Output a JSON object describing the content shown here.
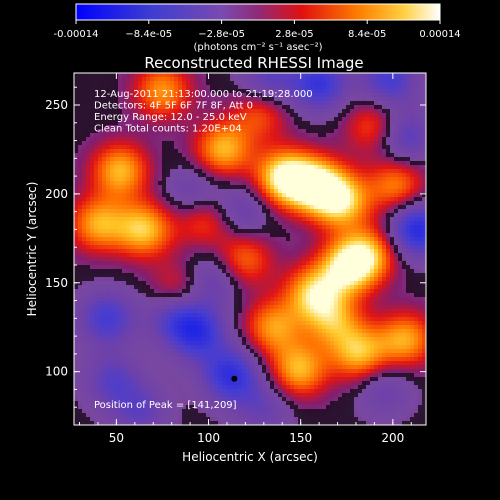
{
  "chart_data": {
    "type": "heatmap",
    "title": "Reconstructed RHESSI Image",
    "xlabel": "Heliocentric X (arcsec)",
    "ylabel": "Heliocentric Y (arcsec)",
    "xlim": [
      27,
      218
    ],
    "ylim": [
      70,
      268
    ],
    "x_ticks": [
      "50",
      "100",
      "150",
      "200"
    ],
    "y_ticks": [
      "100",
      "150",
      "200",
      "250"
    ],
    "colorbar": {
      "tick_labels": [
        "-0.00014",
        "−8.4e-05",
        "−2.8e-05",
        "2.8e-05",
        "8.4e-05",
        "0.00014"
      ],
      "unit_label": "(photons cm⁻² s⁻¹ asec⁻²)",
      "range": [
        -0.00014,
        0.00014
      ]
    },
    "annotations": [
      "12-Aug-2011 21:13:00.000 to 21:19:28.000",
      "Detectors: 4F 5F 6F 7F 8F, Att 0",
      "Energy Range: 12.0 - 25.0 keV",
      "Clean     Total counts: 1.20E+04"
    ],
    "peak_label": "Position of Peak = [141,209]",
    "peak_position": [
      141,
      209
    ],
    "blobs": [
      {
        "x": 141,
        "y": 209,
        "v": 1.0
      },
      {
        "x": 158,
        "y": 205,
        "v": 0.95
      },
      {
        "x": 172,
        "y": 196,
        "v": 0.85
      },
      {
        "x": 52,
        "y": 213,
        "v": 0.75
      },
      {
        "x": 65,
        "y": 180,
        "v": 0.8
      },
      {
        "x": 40,
        "y": 183,
        "v": 0.7
      },
      {
        "x": 108,
        "y": 225,
        "v": 0.75
      },
      {
        "x": 188,
        "y": 167,
        "v": 0.6
      },
      {
        "x": 176,
        "y": 159,
        "v": 0.95
      },
      {
        "x": 157,
        "y": 144,
        "v": 0.8
      },
      {
        "x": 149,
        "y": 101,
        "v": 0.75
      },
      {
        "x": 135,
        "y": 125,
        "v": 0.65
      },
      {
        "x": 182,
        "y": 110,
        "v": 0.75
      },
      {
        "x": 168,
        "y": 128,
        "v": 0.6
      },
      {
        "x": 207,
        "y": 118,
        "v": 0.7
      },
      {
        "x": 202,
        "y": 205,
        "v": 0.6
      },
      {
        "x": 75,
        "y": 258,
        "v": 0.65
      },
      {
        "x": 128,
        "y": 246,
        "v": 0.5
      },
      {
        "x": 119,
        "y": 163,
        "v": 0.55
      },
      {
        "x": 98,
        "y": 186,
        "v": 0.5
      },
      {
        "x": 84,
        "y": 146,
        "v": 0.45
      },
      {
        "x": 190,
        "y": 238,
        "v": 0.5
      },
      {
        "x": 112,
        "y": 98,
        "v": -0.75
      },
      {
        "x": 94,
        "y": 122,
        "v": -0.7
      },
      {
        "x": 82,
        "y": 132,
        "v": -0.5
      },
      {
        "x": 45,
        "y": 130,
        "v": -0.6
      },
      {
        "x": 160,
        "y": 262,
        "v": -0.7
      },
      {
        "x": 132,
        "y": 263,
        "v": -0.5
      },
      {
        "x": 198,
        "y": 264,
        "v": -0.6
      },
      {
        "x": 213,
        "y": 180,
        "v": -0.85
      },
      {
        "x": 206,
        "y": 232,
        "v": -0.55
      },
      {
        "x": 102,
        "y": 152,
        "v": -0.45
      },
      {
        "x": 48,
        "y": 95,
        "v": -0.45
      },
      {
        "x": 92,
        "y": 200,
        "v": -0.4
      },
      {
        "x": 118,
        "y": 190,
        "v": -0.4
      },
      {
        "x": 63,
        "y": 78,
        "v": -0.4
      },
      {
        "x": 195,
        "y": 90,
        "v": -0.35
      },
      {
        "x": 130,
        "y": 80,
        "v": -0.35
      }
    ]
  }
}
